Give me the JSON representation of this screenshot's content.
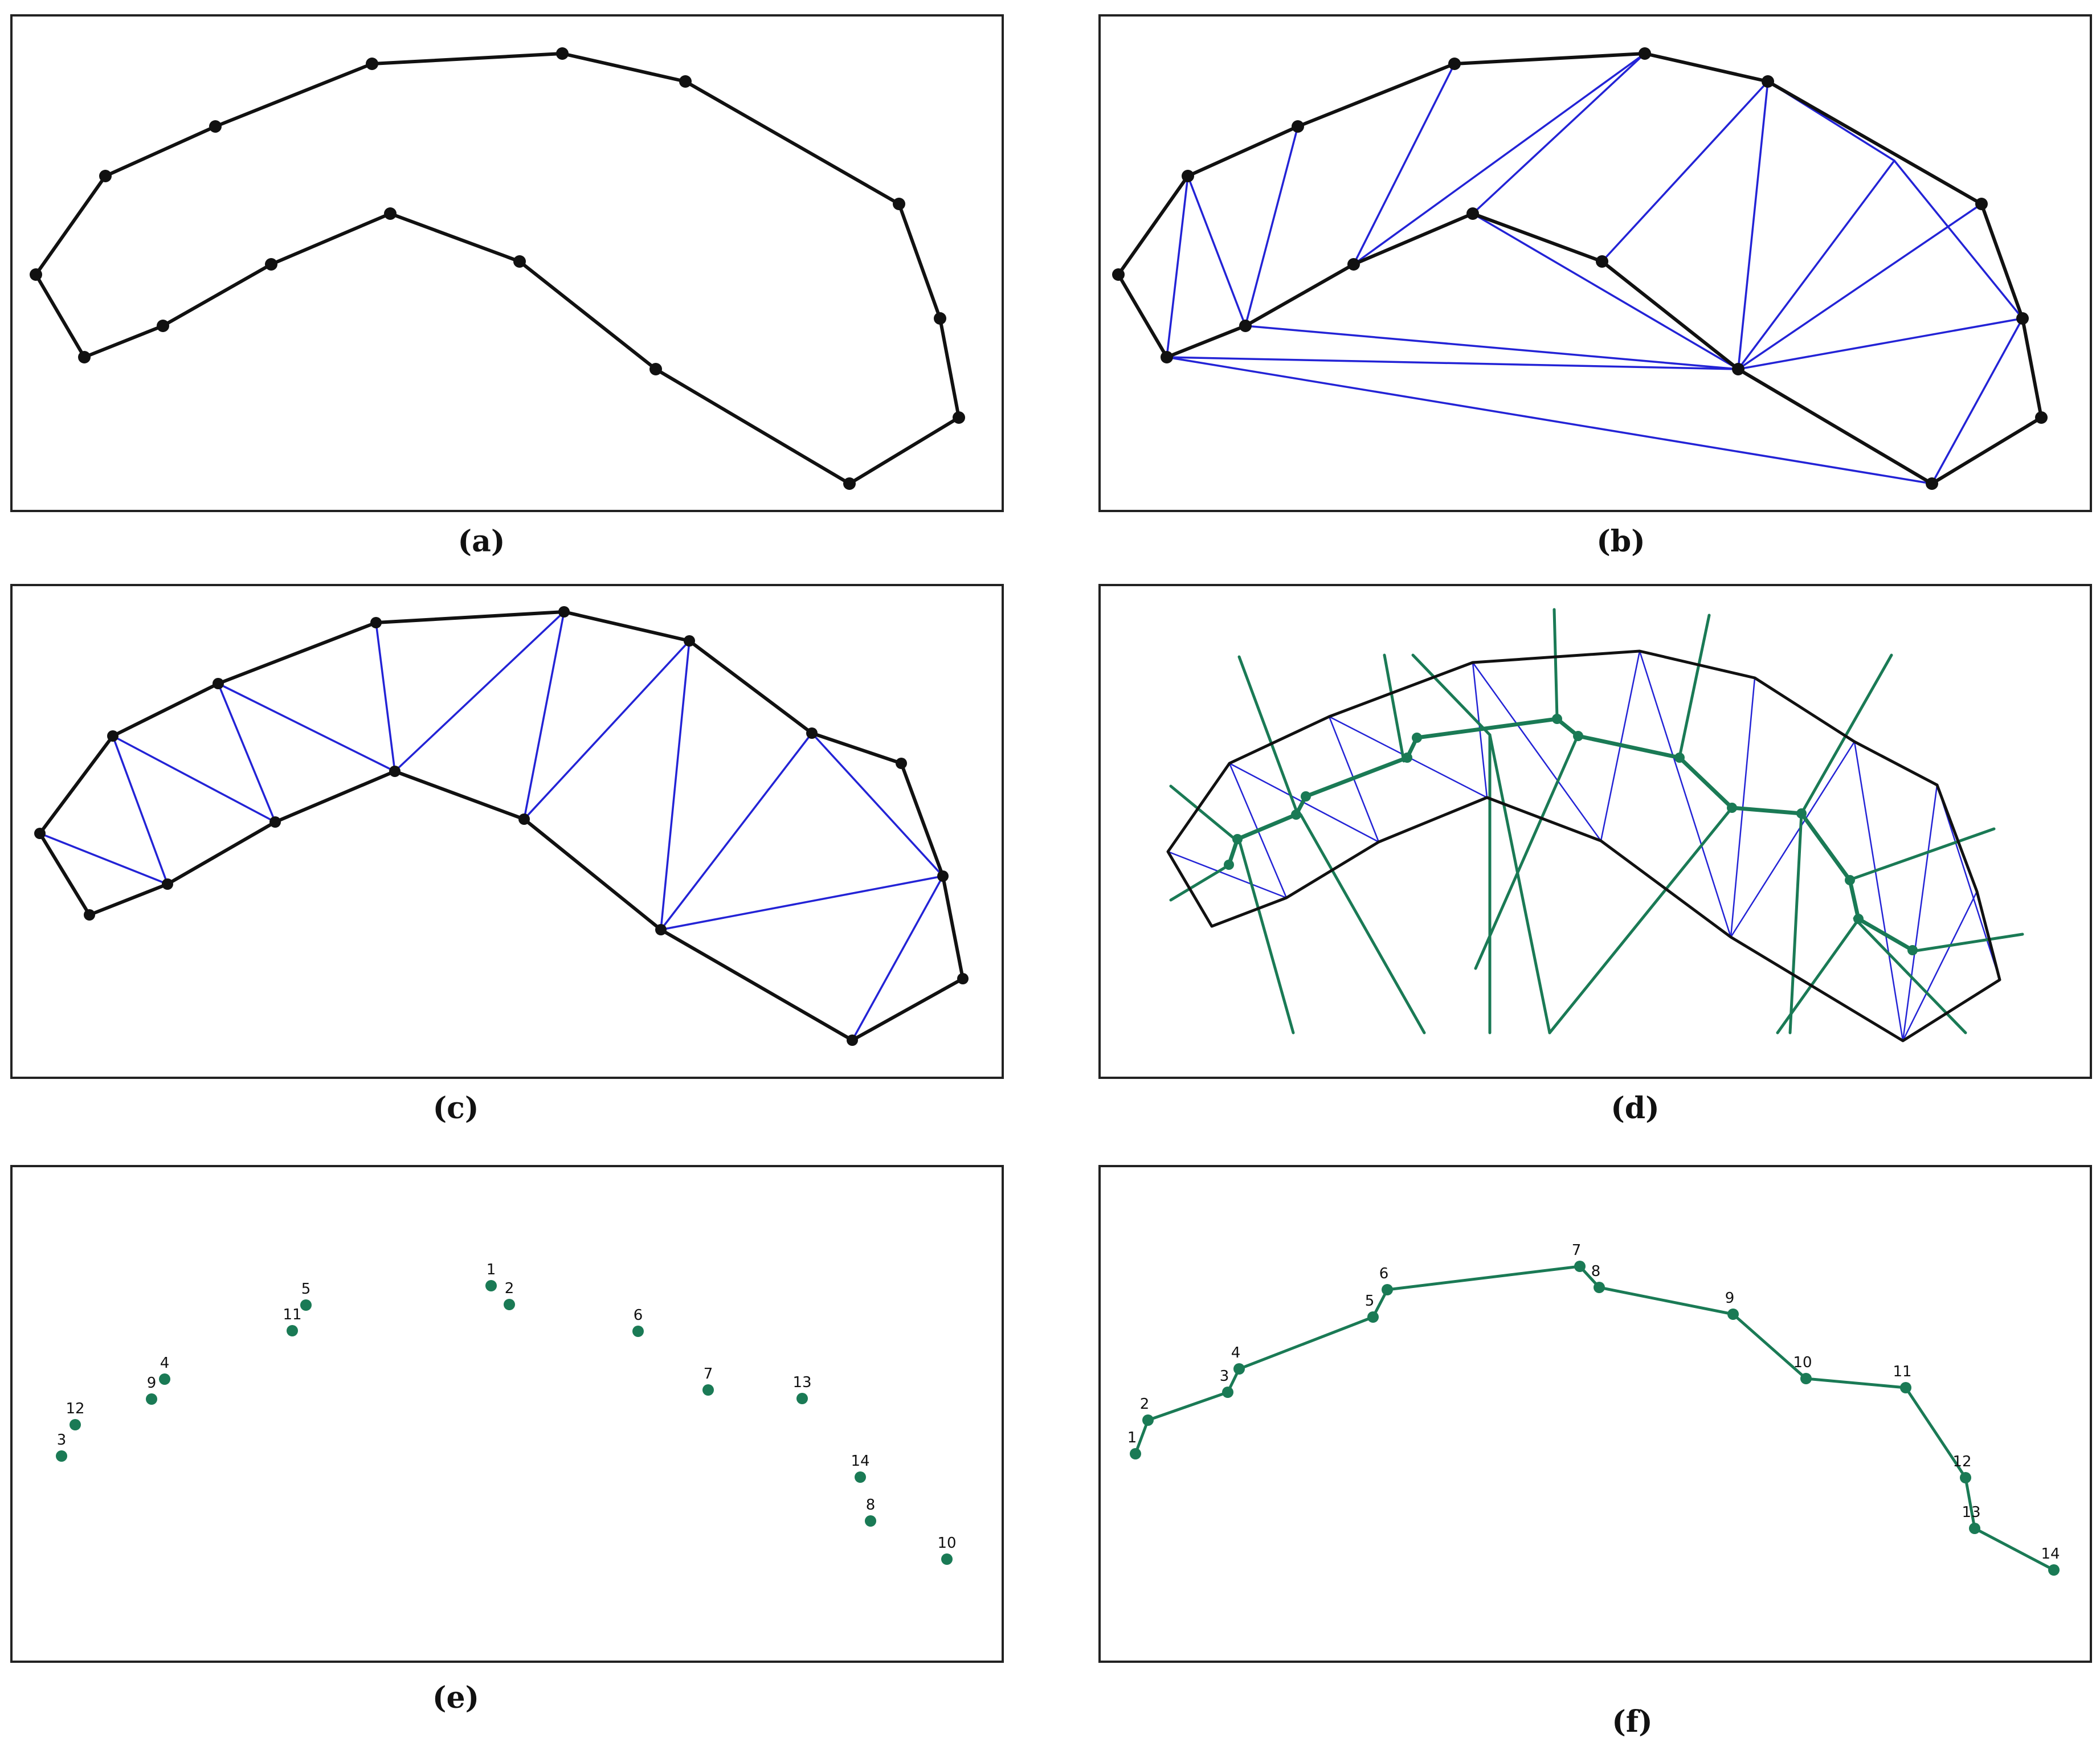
{
  "colors": {
    "outline": "#111111",
    "triangulation": "#2323d6",
    "skeleton": "#1a7a55",
    "frame": "#222222"
  },
  "captions": {
    "a": "(a)",
    "b": "(b)",
    "c": "(c)",
    "d": "(d)",
    "e": "(e)",
    "f": "(f)"
  },
  "panel_e": {
    "labels": [
      "12",
      "3",
      "9",
      "4",
      "11",
      "5",
      "1",
      "2",
      "6",
      "7",
      "13",
      "14",
      "8",
      "10"
    ]
  },
  "panel_f": {
    "labels": [
      "1",
      "2",
      "3",
      "4",
      "5",
      "6",
      "7",
      "8",
      "9",
      "10",
      "11",
      "12",
      "13",
      "14"
    ]
  }
}
